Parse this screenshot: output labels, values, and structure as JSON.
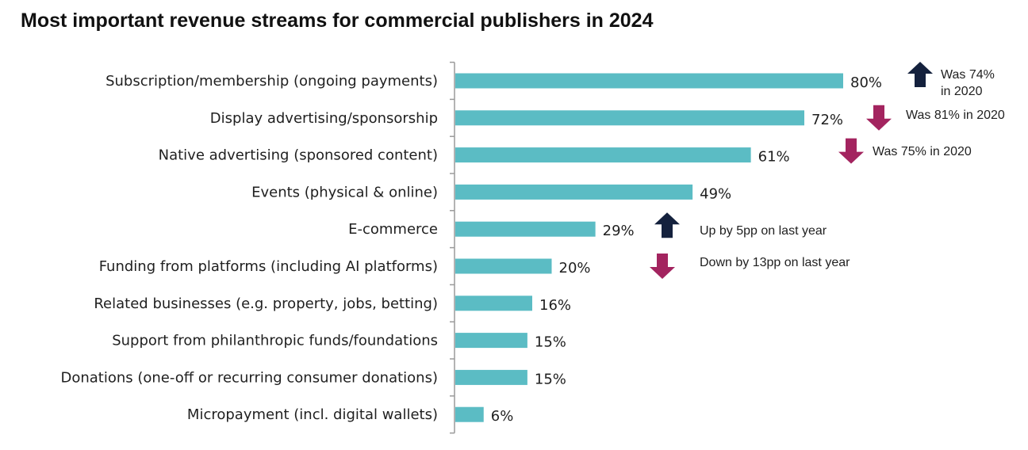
{
  "colors": {
    "bar": "#5bbcc4",
    "up": "#14213d",
    "down": "#a3245f",
    "axis": "#9a9a9a"
  },
  "chart_data": {
    "type": "bar",
    "orientation": "horizontal",
    "title": "Most important revenue streams for commercial publishers in 2024",
    "categories": [
      "Subscription/membership (ongoing payments)",
      "Display advertising/sponsorship",
      "Native advertising (sponsored content)",
      "Events (physical & online)",
      "E-commerce",
      "Funding from platforms (including AI platforms)",
      "Related businesses (e.g. property, jobs, betting)",
      "Support from philanthropic funds/foundations",
      "Donations (one-off or recurring consumer donations)",
      "Micropayment (incl. digital wallets)"
    ],
    "values": [
      80,
      72,
      61,
      49,
      29,
      20,
      16,
      15,
      15,
      6
    ],
    "value_labels": [
      "80%",
      "72%",
      "61%",
      "49%",
      "29%",
      "20%",
      "16%",
      "15%",
      "15%",
      "6%"
    ],
    "xlim": [
      0,
      100
    ],
    "grid": false,
    "annotations": [
      {
        "category_index": 0,
        "direction": "up",
        "lines": [
          "Was 74%",
          "in 2020"
        ]
      },
      {
        "category_index": 1,
        "direction": "down",
        "lines": [
          "Was 81% in 2020"
        ]
      },
      {
        "category_index": 2,
        "direction": "down",
        "lines": [
          "Was 75% in 2020"
        ]
      },
      {
        "category_index": 4,
        "direction": "up",
        "lines": [
          "Up by 5pp on last year"
        ]
      },
      {
        "category_index": 5,
        "direction": "down",
        "lines": [
          "Down by 13pp on last year"
        ]
      }
    ]
  }
}
